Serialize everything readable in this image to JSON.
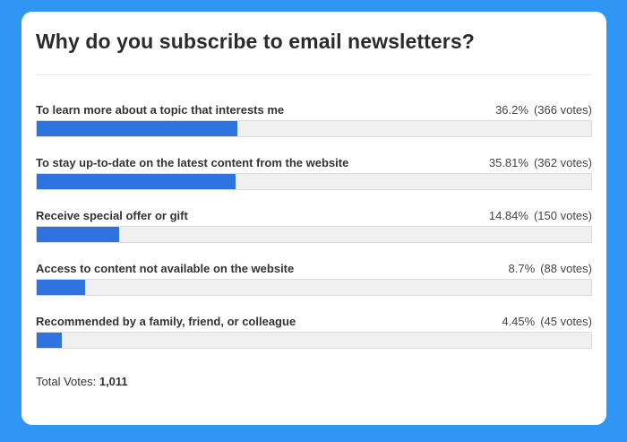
{
  "poll": {
    "title": "Why do you subscribe to email newsletters?",
    "options": [
      {
        "label": "To learn more about a topic that interests me",
        "percent_text": "36.2%",
        "votes_text": "(366 votes)",
        "percent": 36.2
      },
      {
        "label": "To stay up-to-date on the latest content from the website",
        "percent_text": "35.81%",
        "votes_text": "(362 votes)",
        "percent": 35.81
      },
      {
        "label": "Receive special offer or gift",
        "percent_text": "14.84%",
        "votes_text": "(150 votes)",
        "percent": 14.84
      },
      {
        "label": "Access to content not available on the website",
        "percent_text": "8.7%",
        "votes_text": "(88 votes)",
        "percent": 8.7
      },
      {
        "label": "Recommended by a family, friend, or colleague",
        "percent_text": "4.45%",
        "votes_text": "(45 votes)",
        "percent": 4.45
      }
    ],
    "total_label": "Total Votes:",
    "total_value": "1,011"
  },
  "colors": {
    "background": "#2f96f3",
    "bar_fill": "#2f73df",
    "bar_track": "#f0f0f0"
  }
}
